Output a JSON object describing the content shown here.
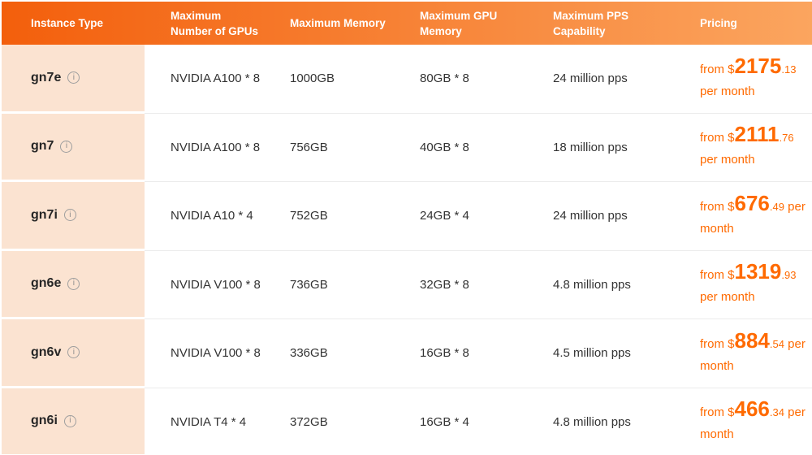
{
  "theme": {
    "header_gradient_start": "#f35f0c",
    "header_gradient_end": "#fba55f",
    "instance_column_bg": "#fbe3d1",
    "price_color": "#ff6a00",
    "body_text_color": "#333333",
    "header_text_color": "#ffffff",
    "divider_color": "#ebebeb",
    "info_icon_color": "#8c8c8c"
  },
  "icons": {
    "info": "i"
  },
  "table": {
    "headers": [
      "Instance Type",
      "Maximum\nNumber of GPUs",
      "Maximum Memory",
      "Maximum GPU\nMemory",
      "Maximum PPS\nCapability",
      "Pricing"
    ],
    "rows": [
      {
        "instance": "gn7e",
        "gpus": "NVIDIA A100 * 8",
        "memory": "1000GB",
        "gpu_memory": "80GB * 8",
        "pps": "24 million pps",
        "price": {
          "prefix": "from $",
          "amount": "2175",
          "decimal": ".13",
          "suffix": "\nper month"
        }
      },
      {
        "instance": "gn7",
        "gpus": "NVIDIA A100 * 8",
        "memory": "756GB",
        "gpu_memory": "40GB * 8",
        "pps": "18 million pps",
        "price": {
          "prefix": "from $",
          "amount": "2111",
          "decimal": ".76",
          "suffix": "\nper month"
        }
      },
      {
        "instance": "gn7i",
        "gpus": "NVIDIA A10 * 4",
        "memory": "752GB",
        "gpu_memory": "24GB * 4",
        "pps": "24 million pps",
        "price": {
          "prefix": "from $",
          "amount": "676",
          "decimal": ".49",
          "suffix": " per\nmonth"
        }
      },
      {
        "instance": "gn6e",
        "gpus": "NVIDIA V100 * 8",
        "memory": "736GB",
        "gpu_memory": "32GB * 8",
        "pps": "4.8 million pps",
        "price": {
          "prefix": "from $",
          "amount": "1319",
          "decimal": ".93",
          "suffix": "\nper month"
        }
      },
      {
        "instance": "gn6v",
        "gpus": "NVIDIA V100 * 8",
        "memory": "336GB",
        "gpu_memory": "16GB * 8",
        "pps": "4.5 million pps",
        "price": {
          "prefix": "from $",
          "amount": "884",
          "decimal": ".54",
          "suffix": " per\nmonth"
        }
      },
      {
        "instance": "gn6i",
        "gpus": "NVIDIA T4 * 4",
        "memory": "372GB",
        "gpu_memory": "16GB * 4",
        "pps": "4.8 million pps",
        "price": {
          "prefix": "from $",
          "amount": "466",
          "decimal": ".34",
          "suffix": " per\nmonth"
        }
      }
    ]
  }
}
